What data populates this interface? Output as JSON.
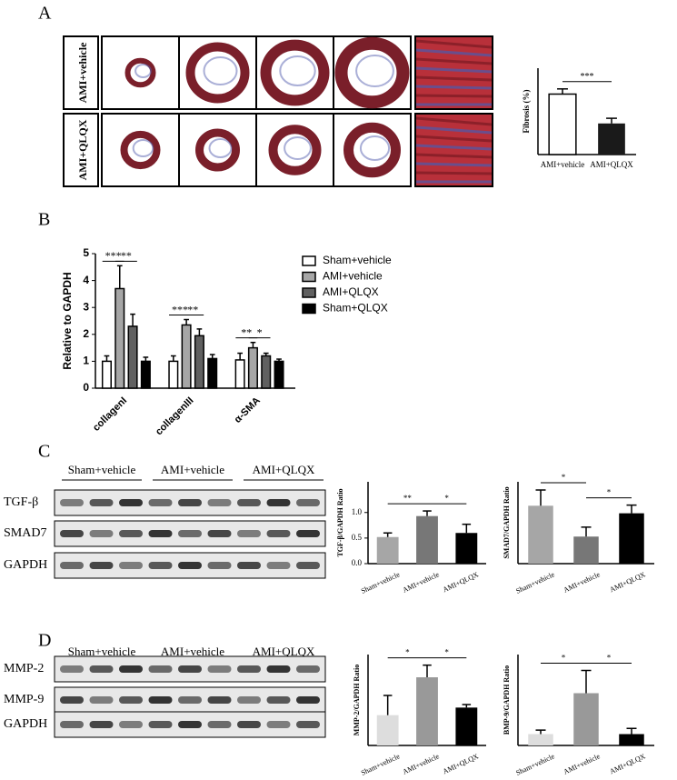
{
  "panel_labels": [
    "A",
    "B",
    "C",
    "D"
  ],
  "histology": {
    "row_labels": [
      "AMI+vehicle",
      "AMI+QLQX"
    ]
  },
  "blots": [
    {
      "groups": [
        "Sham+vehicle",
        "AMI+vehicle",
        "AMI+QLQX"
      ],
      "rows": [
        "TGF-β",
        "SMAD7",
        "GAPDH"
      ]
    },
    {
      "groups": [
        "Sham+vehicle",
        "AMI+vehicle",
        "AMI+QLQX"
      ],
      "rows": [
        "MMP-2",
        "MMP-9",
        "GAPDH"
      ]
    }
  ],
  "chart_data": [
    {
      "type": "bar",
      "ylabel": "Fibrosis (%)",
      "categories": [
        "AMI+vehicle",
        "AMI+QLQX"
      ],
      "values": [
        0.35,
        0.18
      ],
      "errors": [
        0.03,
        0.03
      ],
      "colors": [
        "#ffffff",
        "#1a1a1a"
      ],
      "ylim": [
        0,
        0.5
      ],
      "annotations": [
        "***"
      ]
    },
    {
      "type": "grouped_bar",
      "ylabel": "Relative to GAPDH",
      "categories": [
        "collagenI",
        "collagenIII",
        "α-SMA"
      ],
      "series": [
        {
          "name": "Sham+vehicle",
          "color": "#ffffff",
          "values": [
            1.0,
            1.0,
            1.05
          ],
          "errors": [
            0.2,
            0.2,
            0.25
          ]
        },
        {
          "name": "AMI+vehicle",
          "color": "#a6a6a6",
          "values": [
            3.7,
            2.35,
            1.5
          ],
          "errors": [
            0.85,
            0.2,
            0.2
          ]
        },
        {
          "name": "AMI+QLQX",
          "color": "#606060",
          "values": [
            2.3,
            1.95,
            1.2
          ],
          "errors": [
            0.45,
            0.25,
            0.1
          ]
        },
        {
          "name": "Sham+QLQX",
          "color": "#000000",
          "values": [
            1.0,
            1.1,
            1.0
          ],
          "errors": [
            0.15,
            0.15,
            0.08
          ]
        }
      ],
      "ylim": [
        0,
        5
      ],
      "yticks": [
        0,
        1,
        2,
        3,
        4,
        5
      ],
      "annotations": [
        "***",
        "**",
        "***",
        "**",
        "**",
        "*"
      ]
    },
    {
      "type": "bar",
      "ylabel": "TGF-β/GAPDH Ratio",
      "categories": [
        "Sham+vehicle",
        "AMI+vehicle",
        "AMI+QLQX"
      ],
      "values": [
        0.52,
        0.93,
        0.6
      ],
      "errors": [
        0.08,
        0.1,
        0.17
      ],
      "colors": [
        "#a6a6a6",
        "#777777",
        "#000000"
      ],
      "ylim": [
        0,
        1.6
      ],
      "yticks": [
        {
          "value": 0,
          "label": "0.0"
        },
        {
          "value": 0.5,
          "label": "0.5"
        },
        {
          "value": 1,
          "label": "1.0"
        }
      ],
      "annotations": [
        "**",
        "*"
      ]
    },
    {
      "type": "bar",
      "ylabel": "SMAD7/GAPDH Ratio",
      "categories": [
        "Sham+vehicle",
        "AMI+vehicle",
        "AMI+QLQX"
      ],
      "values": [
        0.92,
        0.43,
        0.8
      ],
      "errors": [
        0.25,
        0.15,
        0.13
      ],
      "colors": [
        "#a6a6a6",
        "#777777",
        "#000000"
      ],
      "ylim": [
        0,
        1.3
      ],
      "annotations": [
        "*",
        "*"
      ]
    },
    {
      "type": "bar",
      "ylabel": "MMP-2/GAPDH Ratio",
      "categories": [
        "Sham+vehicle",
        "AMI+vehicle",
        "AMI+QLQX"
      ],
      "values": [
        0.2,
        0.45,
        0.25
      ],
      "errors": [
        0.13,
        0.08,
        0.02
      ],
      "colors": [
        "#dddddd",
        "#999999",
        "#000000"
      ],
      "ylim": [
        0,
        0.6
      ],
      "annotations": [
        "*",
        "*"
      ]
    },
    {
      "type": "bar",
      "ylabel": "BMP-9/GAPDH Ratio",
      "categories": [
        "Sham+vehicle",
        "AMI+vehicle",
        "AMI+QLQX"
      ],
      "values": [
        0.2,
        0.92,
        0.2
      ],
      "errors": [
        0.07,
        0.4,
        0.1
      ],
      "colors": [
        "#dddddd",
        "#999999",
        "#000000"
      ],
      "ylim": [
        0,
        1.6
      ],
      "annotations": [
        "*",
        "*"
      ]
    }
  ]
}
